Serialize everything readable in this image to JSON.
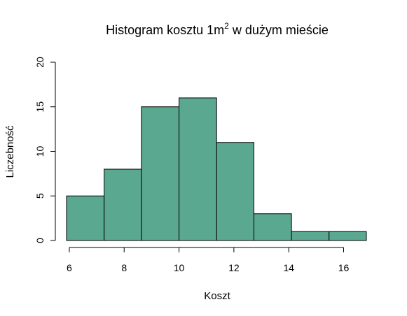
{
  "chart_data": {
    "type": "bar",
    "title": "Histogram kosztu 1m",
    "title_superscript": "2",
    "title_suffix": " w dużym mieście",
    "xlabel": "Koszt",
    "ylabel": "Liczebność",
    "bin_edges": [
      5.9,
      7.27,
      8.63,
      10.0,
      11.37,
      12.73,
      14.1,
      15.47,
      16.83
    ],
    "values": [
      5,
      8,
      15,
      16,
      11,
      3,
      1,
      1
    ],
    "xlim": [
      5.9,
      16.83
    ],
    "ylim": [
      0,
      20
    ],
    "x_ticks": [
      6,
      8,
      10,
      12,
      14,
      16
    ],
    "y_ticks": [
      0,
      5,
      10,
      15,
      20
    ],
    "bar_color": "#5ba890",
    "border_color": "#000000",
    "grid": false,
    "legend": "none"
  }
}
